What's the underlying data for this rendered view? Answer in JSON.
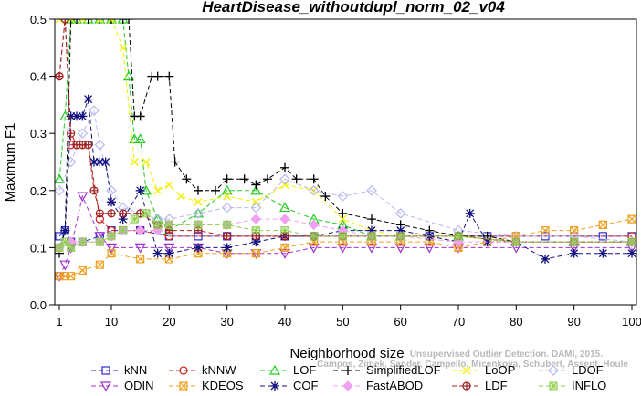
{
  "chart_data": {
    "type": "line",
    "title": "HeartDisease_withoutdupl_norm_02_v04",
    "xlabel": "Neighborhood size",
    "ylabel": "Maximum F1",
    "xlim": [
      1,
      100
    ],
    "ylim": [
      0.0,
      0.5
    ],
    "x_ticks": [
      1,
      10,
      20,
      30,
      40,
      50,
      60,
      70,
      80,
      90,
      100
    ],
    "y_ticks": [
      0.0,
      0.1,
      0.2,
      0.3,
      0.4,
      0.5
    ],
    "x_tick_labels": [
      "1",
      "10",
      "20",
      "30",
      "40",
      "50",
      "60",
      "70",
      "80",
      "90",
      "100"
    ],
    "y_tick_labels": [
      "0.0",
      "0.1",
      "0.2",
      "0.3",
      "0.4",
      "0.5"
    ],
    "grid": false,
    "legend_position": "bottom",
    "watermark": {
      "line1": "Unsupervised Outlier Detection. DAMI, 2015.",
      "line2": "Campos, Zimek, Sander, Campello, Micenkova, Schubert, Assent, Houle"
    },
    "series": [
      {
        "name": "kNN",
        "color": "#2b2bd6",
        "marker": "square",
        "x": [
          1,
          2,
          3,
          5,
          8,
          10,
          12,
          15,
          20,
          25,
          30,
          35,
          40,
          45,
          50,
          55,
          60,
          65,
          70,
          75,
          80,
          85,
          90,
          95,
          100
        ],
        "y": [
          0.12,
          0.13,
          0.11,
          0.11,
          0.12,
          0.13,
          0.13,
          0.13,
          0.12,
          0.12,
          0.12,
          0.12,
          0.12,
          0.12,
          0.12,
          0.12,
          0.12,
          0.12,
          0.12,
          0.12,
          0.12,
          0.12,
          0.12,
          0.12,
          0.12
        ]
      },
      {
        "name": "kNNW",
        "color": "#d02020",
        "marker": "circle",
        "x": [
          1,
          2,
          3,
          4,
          5,
          6,
          8,
          10,
          15,
          20,
          30,
          40,
          50,
          60,
          70,
          80,
          90,
          100
        ],
        "y": [
          0.4,
          0.5,
          0.28,
          0.28,
          0.28,
          0.28,
          0.15,
          0.13,
          0.13,
          0.12,
          0.12,
          0.12,
          0.12,
          0.12,
          0.12,
          0.12,
          0.12,
          0.12
        ]
      },
      {
        "name": "LOF",
        "color": "#22cc22",
        "marker": "triangle-up",
        "x": [
          1,
          2,
          3,
          4,
          6,
          8,
          10,
          12,
          13,
          14,
          15,
          16,
          18,
          20,
          25,
          30,
          35,
          40,
          45,
          50,
          55,
          60,
          70,
          80,
          90,
          100
        ],
        "y": [
          0.22,
          0.33,
          0.5,
          0.5,
          0.5,
          0.5,
          0.5,
          0.5,
          0.4,
          0.29,
          0.29,
          0.2,
          0.15,
          0.13,
          0.16,
          0.2,
          0.2,
          0.17,
          0.15,
          0.14,
          0.12,
          0.12,
          0.12,
          0.11,
          0.11,
          0.11
        ]
      },
      {
        "name": "SimplifiedLOF",
        "color": "#000000",
        "marker": "plus",
        "x": [
          1,
          2,
          3,
          4,
          6,
          8,
          10,
          12,
          13,
          14,
          15,
          17,
          18,
          20,
          21,
          23,
          25,
          28,
          30,
          33,
          35,
          37,
          40,
          42,
          45,
          47,
          50,
          55,
          60,
          65,
          70,
          75,
          80,
          90,
          100
        ],
        "y": [
          0.09,
          0.13,
          0.5,
          0.5,
          0.5,
          0.5,
          0.5,
          0.5,
          0.5,
          0.33,
          0.33,
          0.4,
          0.4,
          0.4,
          0.25,
          0.22,
          0.2,
          0.2,
          0.22,
          0.22,
          0.21,
          0.22,
          0.24,
          0.22,
          0.22,
          0.19,
          0.16,
          0.15,
          0.14,
          0.13,
          0.12,
          0.12,
          0.11,
          0.11,
          0.11
        ]
      },
      {
        "name": "LoOP",
        "color": "#f0f000",
        "marker": "x",
        "x": [
          1,
          3,
          5,
          8,
          10,
          12,
          14,
          16,
          18,
          20,
          22,
          25,
          30,
          35,
          40,
          45,
          50,
          55,
          60,
          70,
          80,
          90,
          100
        ],
        "y": [
          0.5,
          0.5,
          0.5,
          0.5,
          0.5,
          0.45,
          0.25,
          0.25,
          0.2,
          0.21,
          0.19,
          0.18,
          0.19,
          0.18,
          0.21,
          0.2,
          0.15,
          0.13,
          0.12,
          0.12,
          0.11,
          0.11,
          0.11
        ]
      },
      {
        "name": "LDOF",
        "color": "#b8b8f0",
        "marker": "diamond",
        "x": [
          1,
          3,
          5,
          7,
          8,
          10,
          12,
          15,
          18,
          20,
          25,
          30,
          35,
          40,
          45,
          50,
          55,
          60,
          70,
          80,
          90,
          100
        ],
        "y": [
          0.2,
          0.25,
          0.3,
          0.34,
          0.28,
          0.2,
          0.17,
          0.16,
          0.15,
          0.15,
          0.16,
          0.17,
          0.17,
          0.22,
          0.2,
          0.19,
          0.2,
          0.16,
          0.13,
          0.12,
          0.12,
          0.11
        ]
      },
      {
        "name": "ODIN",
        "color": "#a030d0",
        "marker": "triangle-down",
        "x": [
          1,
          2,
          3,
          5,
          8,
          10,
          15,
          20,
          25,
          30,
          35,
          40,
          45,
          50,
          55,
          60,
          65,
          70,
          80,
          90,
          100
        ],
        "y": [
          0.05,
          0.07,
          0.1,
          0.19,
          0.12,
          0.1,
          0.1,
          0.1,
          0.1,
          0.09,
          0.09,
          0.09,
          0.1,
          0.1,
          0.1,
          0.1,
          0.1,
          0.1,
          0.1,
          0.1,
          0.1
        ]
      },
      {
        "name": "KDEOS",
        "color": "#f0a020",
        "marker": "square-x",
        "x": [
          1,
          2,
          3,
          5,
          8,
          10,
          15,
          20,
          25,
          30,
          35,
          40,
          45,
          50,
          55,
          60,
          65,
          70,
          75,
          80,
          85,
          90,
          95,
          100
        ],
        "y": [
          0.05,
          0.05,
          0.05,
          0.06,
          0.07,
          0.09,
          0.08,
          0.08,
          0.09,
          0.09,
          0.09,
          0.1,
          0.11,
          0.11,
          0.11,
          0.11,
          0.11,
          0.1,
          0.11,
          0.12,
          0.13,
          0.13,
          0.14,
          0.15
        ]
      },
      {
        "name": "COF",
        "color": "#101080",
        "marker": "asterisk",
        "x": [
          1,
          2,
          3,
          4,
          5,
          6,
          7,
          8,
          9,
          10,
          12,
          15,
          18,
          20,
          25,
          30,
          35,
          40,
          45,
          50,
          55,
          60,
          65,
          70,
          72,
          75,
          80,
          85,
          90,
          95,
          100
        ],
        "y": [
          0.1,
          0.13,
          0.33,
          0.33,
          0.33,
          0.36,
          0.25,
          0.25,
          0.25,
          0.18,
          0.15,
          0.2,
          0.09,
          0.09,
          0.1,
          0.1,
          0.11,
          0.12,
          0.12,
          0.13,
          0.13,
          0.13,
          0.12,
          0.11,
          0.16,
          0.11,
          0.11,
          0.08,
          0.09,
          0.09,
          0.09
        ]
      },
      {
        "name": "FastABOD",
        "color": "#f0a0f0",
        "marker": "diamond-filled",
        "x": [
          1,
          3,
          5,
          8,
          10,
          12,
          15,
          18,
          20,
          25,
          30,
          35,
          40,
          45,
          50,
          55,
          60,
          70,
          80,
          90,
          100
        ],
        "y": [
          0.1,
          0.11,
          0.11,
          0.11,
          0.12,
          0.13,
          0.13,
          0.13,
          0.14,
          0.14,
          0.14,
          0.15,
          0.15,
          0.14,
          0.13,
          0.12,
          0.12,
          0.11,
          0.11,
          0.11,
          0.11
        ]
      },
      {
        "name": "LDF",
        "color": "#a02020",
        "marker": "circle-plus",
        "x": [
          1,
          2,
          3,
          4,
          5,
          6,
          7,
          8,
          10,
          12,
          15,
          18,
          20,
          25,
          30,
          35,
          40,
          45,
          50,
          55,
          60,
          70,
          80,
          90,
          100
        ],
        "y": [
          0.4,
          0.5,
          0.3,
          0.28,
          0.28,
          0.28,
          0.2,
          0.16,
          0.16,
          0.16,
          0.16,
          0.14,
          0.13,
          0.13,
          0.12,
          0.12,
          0.12,
          0.12,
          0.12,
          0.12,
          0.12,
          0.12,
          0.11,
          0.11,
          0.11
        ]
      },
      {
        "name": "INFLO",
        "color": "#90d050",
        "marker": "square-star",
        "x": [
          1,
          2,
          3,
          5,
          8,
          10,
          12,
          14,
          16,
          18,
          20,
          25,
          30,
          35,
          40,
          45,
          50,
          55,
          60,
          70,
          80,
          90,
          100
        ],
        "y": [
          0.1,
          0.11,
          0.1,
          0.11,
          0.11,
          0.12,
          0.13,
          0.15,
          0.16,
          0.14,
          0.14,
          0.14,
          0.14,
          0.13,
          0.13,
          0.12,
          0.12,
          0.12,
          0.12,
          0.12,
          0.11,
          0.11,
          0.11
        ]
      }
    ]
  }
}
